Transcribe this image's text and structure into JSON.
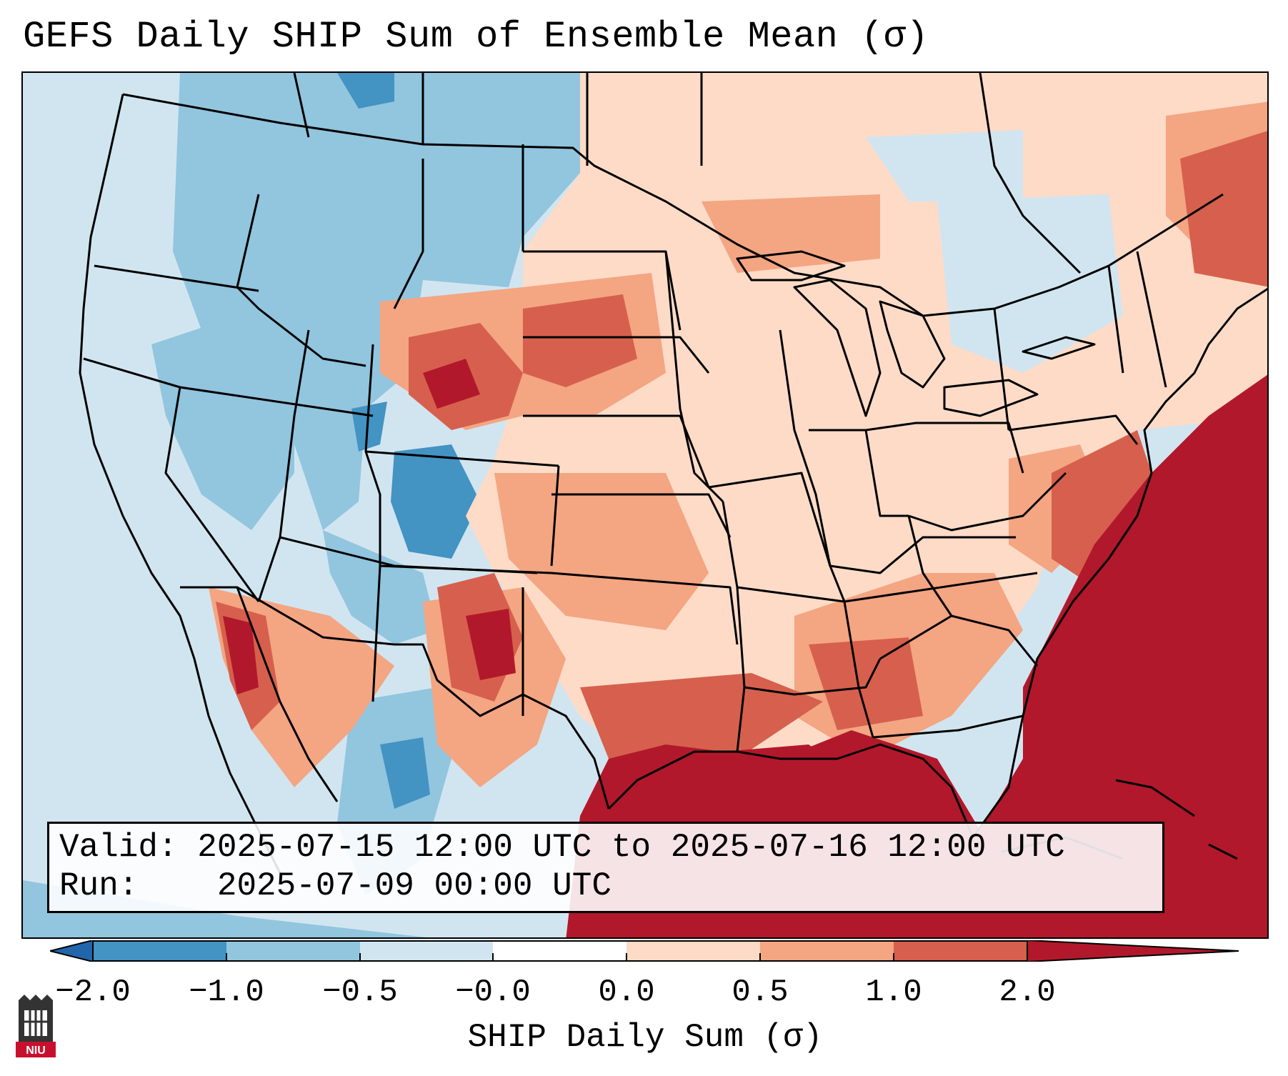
{
  "title": "GEFS Daily SHIP Sum of Ensemble Mean (σ)",
  "info": {
    "valid_label": "Valid:",
    "valid_value": "2025-07-15 12:00 UTC to 2025-07-16 12:00 UTC",
    "run_label": "Run:",
    "run_value": "2025-07-09 00:00 UTC"
  },
  "colorbar": {
    "label": "SHIP Daily Sum (σ)",
    "ticks": [
      "−2.0",
      "−1.0",
      "−0.5",
      "−0.0",
      "0.0",
      "0.5",
      "1.0",
      "2.0"
    ],
    "colors": [
      "#2166ac",
      "#4393c3",
      "#92c5de",
      "#d1e5f0",
      "#ffffff",
      "#fddbc7",
      "#f4a582",
      "#d6604d",
      "#b2182b"
    ],
    "bins": [
      "#4393c3",
      "#92c5de",
      "#d1e5f0",
      "#ffffff",
      "#fddbc7",
      "#f4a582",
      "#d6604d"
    ],
    "min_color": "#2166ac",
    "max_color": "#b2182b",
    "range": [
      -2.0,
      2.0
    ]
  },
  "logo": {
    "text": "NIU",
    "color": "#c8102e"
  }
}
